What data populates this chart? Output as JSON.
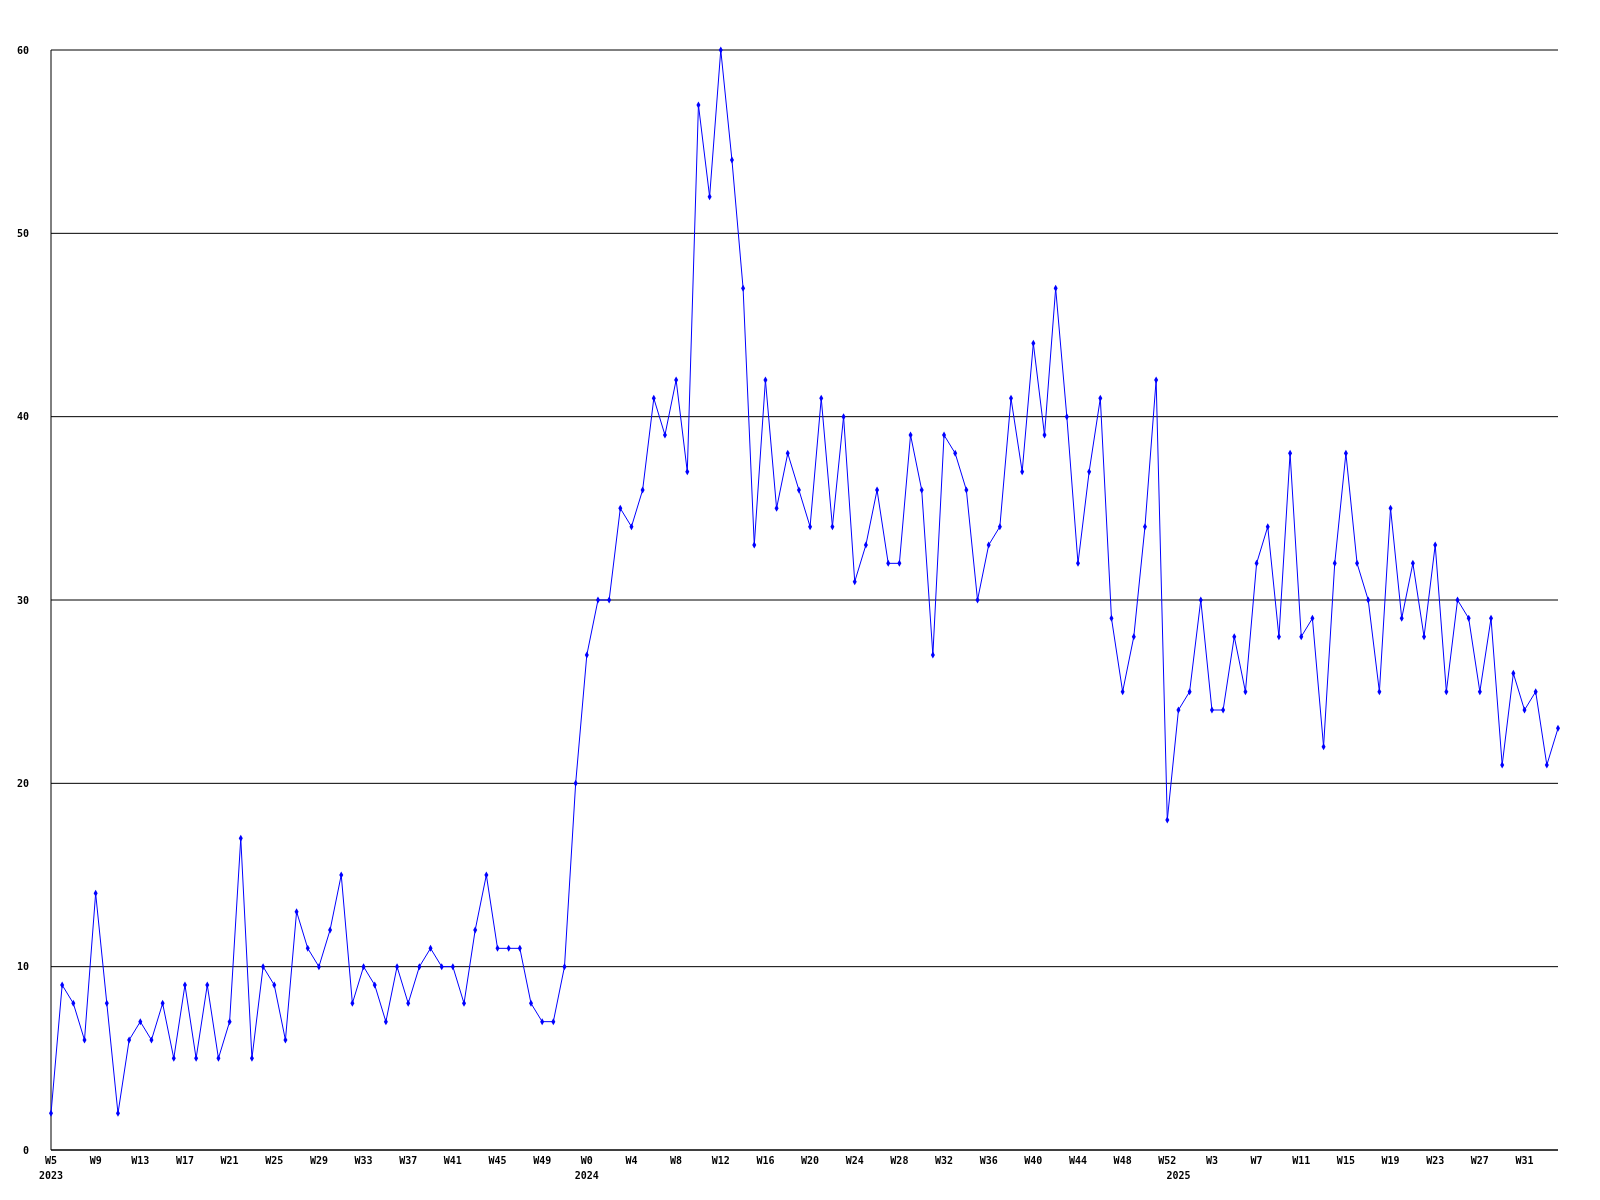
{
  "chart_data": {
    "type": "line",
    "categories": [
      "W5\n2023",
      null,
      null,
      null,
      "W9",
      null,
      null,
      null,
      "W13",
      null,
      null,
      null,
      "W17",
      null,
      null,
      null,
      "W21",
      null,
      null,
      null,
      "W25",
      null,
      null,
      null,
      "W29",
      null,
      null,
      null,
      "W33",
      null,
      null,
      null,
      "W37",
      null,
      null,
      null,
      "W41",
      null,
      null,
      null,
      "W45",
      null,
      null,
      null,
      "W49",
      null,
      null,
      null,
      "W0\n2024",
      null,
      null,
      null,
      "W4",
      null,
      null,
      null,
      "W8",
      null,
      null,
      null,
      "W12",
      null,
      null,
      null,
      "W16",
      null,
      null,
      null,
      "W20",
      null,
      null,
      null,
      "W24",
      null,
      null,
      null,
      "W28",
      null,
      null,
      null,
      "W32",
      null,
      null,
      null,
      "W36",
      null,
      null,
      null,
      "W40",
      null,
      null,
      null,
      "W44",
      null,
      null,
      null,
      "W48",
      null,
      null,
      null,
      "W52",
      "\n2025",
      null,
      null,
      "W3",
      null,
      null,
      null,
      "W7",
      null,
      null,
      null,
      "W11",
      null,
      null,
      null,
      "W15",
      null,
      null,
      null,
      "W19",
      null,
      null,
      null,
      "W23",
      null,
      null,
      null,
      "W27",
      null,
      null,
      null,
      "W31",
      null,
      null,
      null
    ],
    "series": [
      {
        "color": "#0000ff",
        "values": [
          2,
          9,
          8,
          6,
          14,
          8,
          2,
          6,
          7,
          6,
          8,
          5,
          9,
          5,
          9,
          5,
          7,
          17,
          5,
          10,
          9,
          6,
          13,
          11,
          10,
          12,
          15,
          8,
          10,
          9,
          7,
          10,
          8,
          10,
          11,
          10,
          10,
          8,
          12,
          15,
          11,
          11,
          11,
          8,
          7,
          7,
          10,
          20,
          27,
          30,
          30,
          35,
          34,
          36,
          41,
          39,
          42,
          37,
          57,
          52,
          60,
          54,
          47,
          33,
          42,
          35,
          38,
          36,
          34,
          41,
          34,
          40,
          31,
          33,
          36,
          32,
          32,
          39,
          36,
          27,
          39,
          38,
          36,
          30,
          33,
          34,
          41,
          37,
          44,
          39,
          47,
          40,
          32,
          37,
          41,
          29,
          25,
          28,
          34,
          42,
          18,
          24,
          25,
          30,
          24,
          24,
          28,
          25,
          32,
          34,
          28,
          38,
          28,
          29,
          22,
          32,
          38,
          32,
          30,
          25,
          35,
          29,
          32,
          28,
          33,
          25,
          30,
          29,
          25,
          29,
          21,
          26,
          24,
          25,
          21,
          23
        ]
      }
    ],
    "ylim": [
      0,
      60
    ],
    "yticks": [
      0,
      10,
      20,
      30,
      40,
      50,
      60
    ],
    "grid": "y",
    "marker": "diamond",
    "line_style": "solid"
  }
}
